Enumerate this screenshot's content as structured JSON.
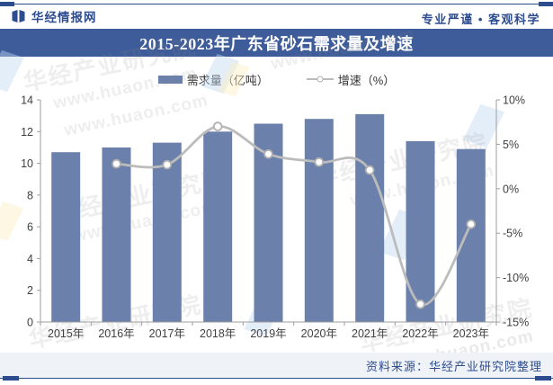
{
  "page": {
    "brand": "华经情报网",
    "slogan": "专业严谨 • 客观科学",
    "source": "资料来源：华经产业研究院整理",
    "watermark_text": "华经产业研究院",
    "watermark_url": "www.huaon.com"
  },
  "colors": {
    "accent_blue": "#2e4d8f",
    "title_bar_bg": "#3e5c99",
    "bar_fill": "#6b80ab",
    "line_gray": "#bcbcbc",
    "marker_stroke": "#b0b0b0",
    "axis_gray": "#9e9e9e",
    "text_dark": "#3f3f3f",
    "source_strip_bg": "#eff2f7"
  },
  "chart_data": {
    "type": "bar+line",
    "title": "2015-2023年广东省砂石需求量及增速",
    "categories": [
      "2015年",
      "2016年",
      "2017年",
      "2018年",
      "2019年",
      "2020年",
      "2021年",
      "2022年",
      "2023年"
    ],
    "series": [
      {
        "name": "需求量（亿吨）",
        "chart": "bar",
        "axis": "left",
        "values": [
          10.7,
          11.0,
          11.3,
          12.0,
          12.5,
          12.8,
          13.1,
          11.4,
          10.9
        ]
      },
      {
        "name": "增速（%）",
        "chart": "line",
        "axis": "right",
        "values": [
          null,
          2.8,
          2.7,
          7.0,
          3.9,
          3.0,
          2.1,
          -13.0,
          -4.0
        ]
      }
    ],
    "left_axis": {
      "min": 0,
      "max": 14,
      "step": 2,
      "suffix": ""
    },
    "right_axis": {
      "min": -15,
      "max": 10,
      "step": 5,
      "suffix": "%"
    },
    "legend_position": "top",
    "grid": false
  }
}
